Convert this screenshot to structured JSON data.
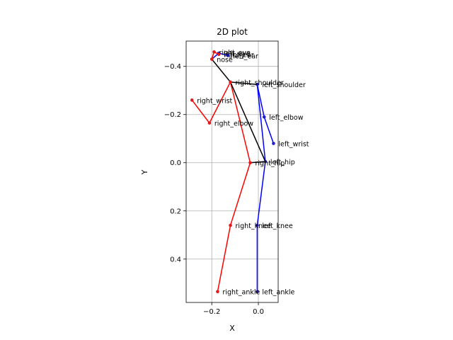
{
  "chart_data": {
    "type": "scatter",
    "title": "2D plot",
    "xlabel": "X",
    "ylabel": "Y",
    "xlim": [
      -0.31,
      0.085
    ],
    "ylim": [
      -0.505,
      0.58
    ],
    "y_inverted": true,
    "grid": true,
    "x_ticks": [
      -0.2,
      0.0
    ],
    "x_tick_labels": [
      "−0.2",
      "0.0"
    ],
    "y_ticks": [
      -0.4,
      -0.2,
      0.0,
      0.2,
      0.4
    ],
    "y_tick_labels": [
      "−0.4",
      "−0.2",
      "0.0",
      "0.2",
      "0.4"
    ],
    "keypoints": [
      {
        "name": "nose",
        "x": -0.2,
        "y": -0.43,
        "color": "#e31a1c"
      },
      {
        "name": "left_eye",
        "x": -0.17,
        "y": -0.455,
        "color": "#1f1fcc"
      },
      {
        "name": "right_eye",
        "x": -0.19,
        "y": -0.46,
        "color": "#e31a1c"
      },
      {
        "name": "left_ear",
        "x": -0.13,
        "y": -0.445,
        "color": "#1f1fcc"
      },
      {
        "name": "right_ear",
        "x": -0.17,
        "y": -0.45,
        "color": "#e31a1c"
      },
      {
        "name": "left_shoulder",
        "x": -0.005,
        "y": -0.325,
        "color": "#1f1fcc"
      },
      {
        "name": "right_shoulder",
        "x": -0.12,
        "y": -0.335,
        "color": "#e31a1c"
      },
      {
        "name": "left_elbow",
        "x": 0.025,
        "y": -0.19,
        "color": "#1f1fcc"
      },
      {
        "name": "right_elbow",
        "x": -0.21,
        "y": -0.165,
        "color": "#e31a1c"
      },
      {
        "name": "left_wrist",
        "x": 0.065,
        "y": -0.08,
        "color": "#1f1fcc"
      },
      {
        "name": "right_wrist",
        "x": -0.285,
        "y": -0.26,
        "color": "#e31a1c"
      },
      {
        "name": "left_hip",
        "x": 0.03,
        "y": -0.005,
        "color": "#1f1fcc"
      },
      {
        "name": "right_hip",
        "x": -0.035,
        "y": 0.0,
        "color": "#e31a1c"
      },
      {
        "name": "left_knee",
        "x": -0.005,
        "y": 0.26,
        "color": "#1f1fcc"
      },
      {
        "name": "right_knee",
        "x": -0.12,
        "y": 0.26,
        "color": "#e31a1c"
      },
      {
        "name": "left_ankle",
        "x": -0.005,
        "y": 0.535,
        "color": "#1f1fcc"
      },
      {
        "name": "right_ankle",
        "x": -0.175,
        "y": 0.535,
        "color": "#e31a1c"
      }
    ],
    "skeleton": [
      {
        "from": "nose",
        "to": "left_eye",
        "color": "#0000ff"
      },
      {
        "from": "nose",
        "to": "right_eye",
        "color": "#ff0000"
      },
      {
        "from": "left_eye",
        "to": "left_ear",
        "color": "#0000ff"
      },
      {
        "from": "right_eye",
        "to": "right_ear",
        "color": "#ff0000"
      },
      {
        "from": "nose",
        "to": "right_shoulder",
        "color": "#000000"
      },
      {
        "from": "right_shoulder",
        "to": "left_shoulder",
        "color": "#000000"
      },
      {
        "from": "left_shoulder",
        "to": "left_elbow",
        "color": "#0000ff"
      },
      {
        "from": "left_elbow",
        "to": "left_wrist",
        "color": "#0000ff"
      },
      {
        "from": "right_shoulder",
        "to": "right_elbow",
        "color": "#ff0000"
      },
      {
        "from": "right_elbow",
        "to": "right_wrist",
        "color": "#ff0000"
      },
      {
        "from": "right_shoulder",
        "to": "right_hip",
        "color": "#ff0000"
      },
      {
        "from": "left_shoulder",
        "to": "left_hip",
        "color": "#0000ff"
      },
      {
        "from": "right_shoulder",
        "to": "left_hip",
        "color": "#000000"
      },
      {
        "from": "right_hip",
        "to": "left_hip",
        "color": "#000000"
      },
      {
        "from": "left_hip",
        "to": "left_knee",
        "color": "#0000ff"
      },
      {
        "from": "left_knee",
        "to": "left_ankle",
        "color": "#0000ff"
      },
      {
        "from": "right_hip",
        "to": "right_knee",
        "color": "#ff0000"
      },
      {
        "from": "right_knee",
        "to": "right_ankle",
        "color": "#ff0000"
      }
    ]
  }
}
